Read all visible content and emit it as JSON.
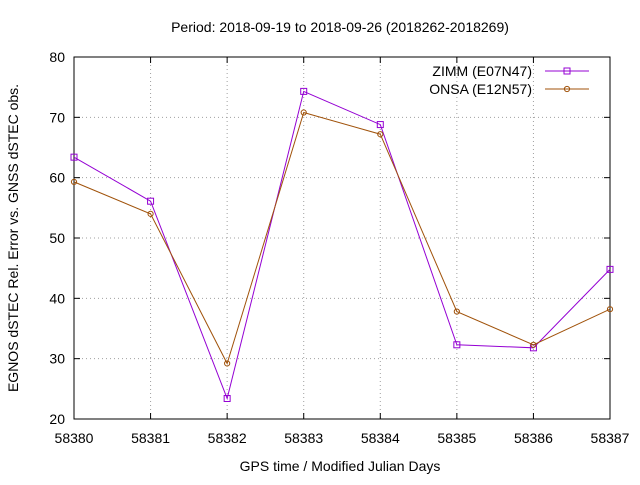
{
  "chart_data": {
    "type": "line",
    "title": "Period: 2018-09-19 to 2018-09-26 (2018262-2018269)",
    "xlabel": "GPS time / Modified Julian Days",
    "ylabel": "EGNOS dSTEC Rel. Error vs. GNSS dSTEC obs.",
    "xlim": [
      58380,
      58387
    ],
    "ylim": [
      20,
      80
    ],
    "xticks": [
      58380,
      58381,
      58382,
      58383,
      58384,
      58385,
      58386,
      58387
    ],
    "yticks": [
      20,
      30,
      40,
      50,
      60,
      70,
      80
    ],
    "grid": true,
    "legend_position": "top-right",
    "series": [
      {
        "name": "ZIMM (E07N47)",
        "color": "#9400d3",
        "marker": "square",
        "x": [
          58380,
          58381,
          58382,
          58383,
          58384,
          58385,
          58386,
          58387
        ],
        "y": [
          63.4,
          56.1,
          23.4,
          74.3,
          68.8,
          32.3,
          31.8,
          44.8
        ]
      },
      {
        "name": "ONSA (E12N57)",
        "color": "#a0520a",
        "marker": "circle",
        "x": [
          58380,
          58381,
          58382,
          58383,
          58384,
          58385,
          58386,
          58387
        ],
        "y": [
          59.3,
          54.0,
          29.2,
          70.8,
          67.2,
          37.8,
          32.3,
          38.2
        ]
      }
    ]
  }
}
